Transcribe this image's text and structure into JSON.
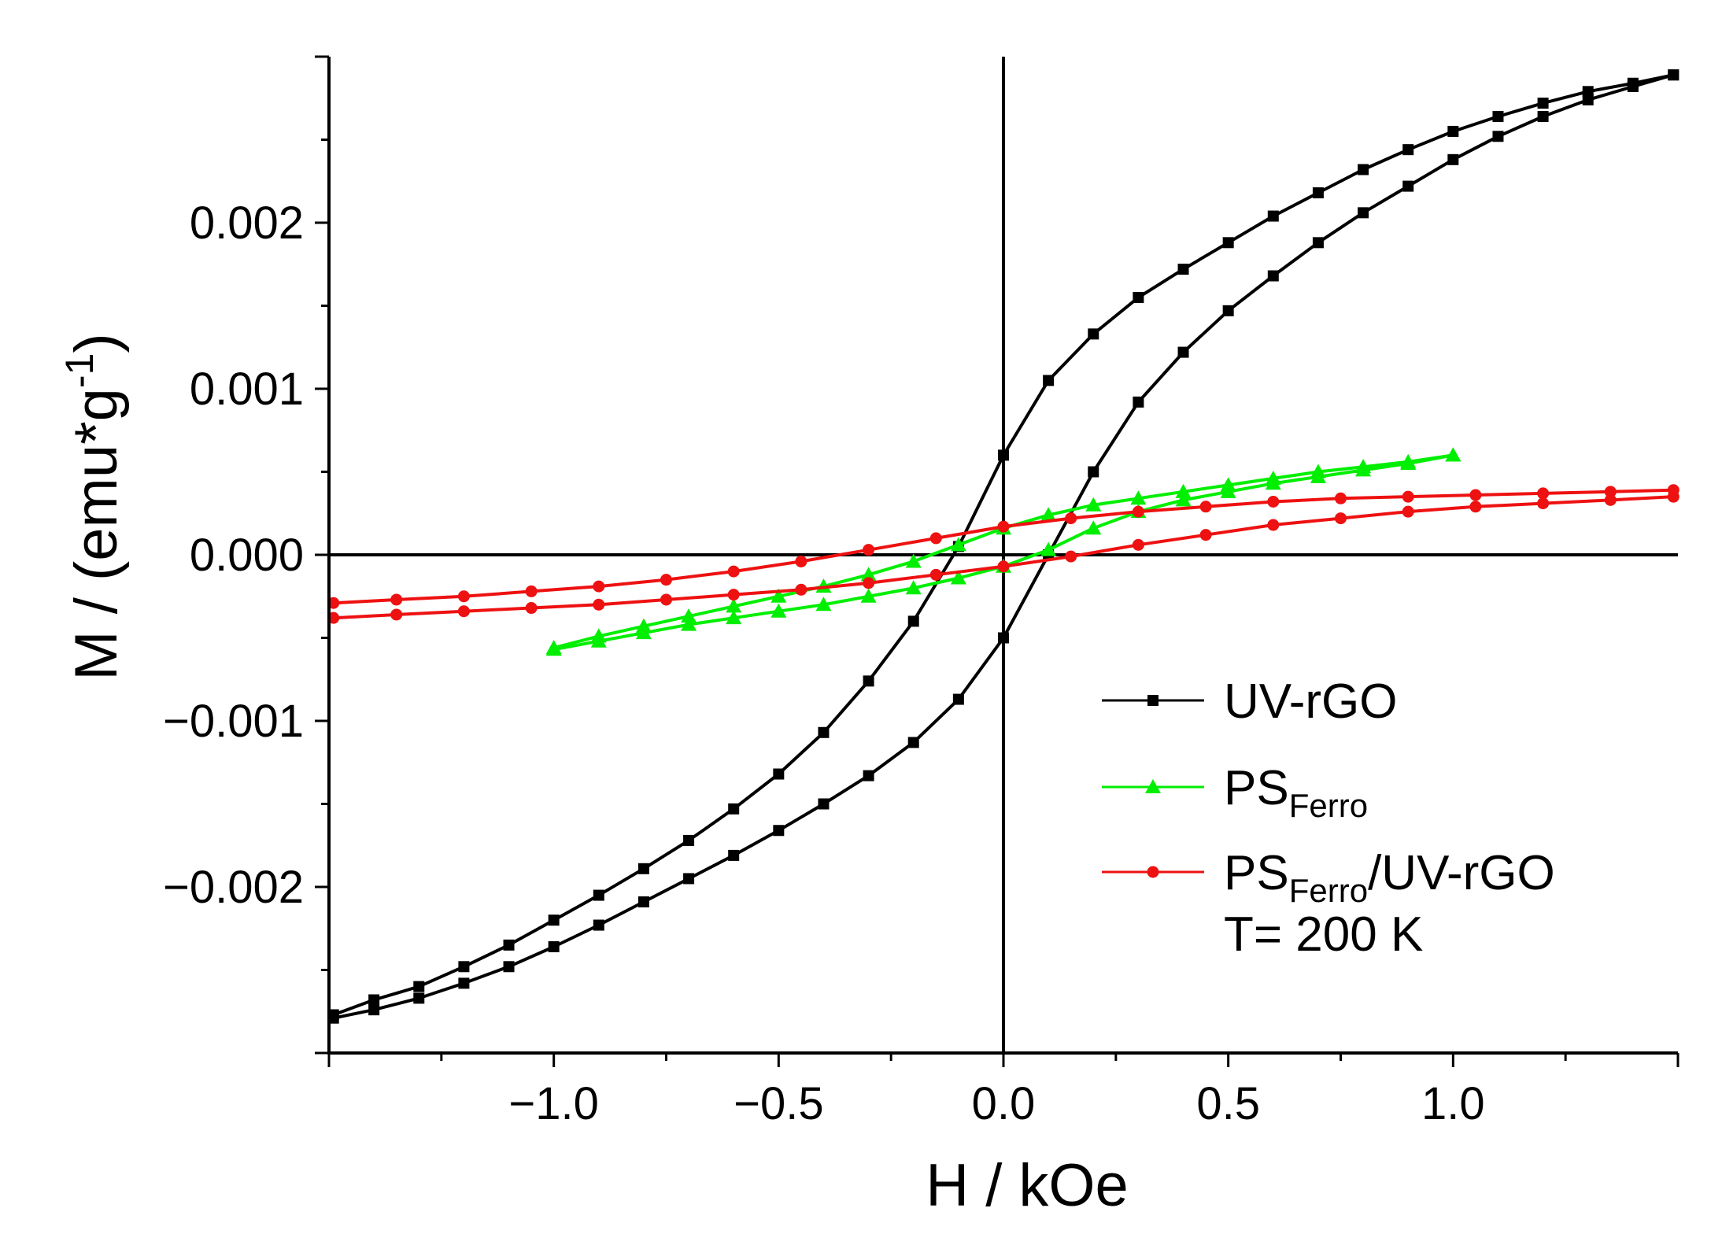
{
  "chart_data": {
    "type": "scatter",
    "title": "",
    "xlabel": "H / kOe",
    "ylabel": {
      "main": "M / (emu*g",
      "sup": "-1",
      "close": ")"
    },
    "xlim": [
      -1.5,
      1.5
    ],
    "ylim": [
      -0.003,
      0.003
    ],
    "x_ticks": [
      -1.0,
      -0.5,
      0.0,
      0.5,
      1.0
    ],
    "x_tick_labels": [
      "−1.0",
      "−0.5",
      "0.0",
      "0.5",
      "1.0"
    ],
    "y_ticks": [
      -0.002,
      -0.001,
      0.0,
      0.001,
      0.002
    ],
    "y_tick_labels": [
      "−0.002",
      "−0.001",
      "0.000",
      "0.001",
      "0.002"
    ],
    "zero_lines": true,
    "grid": false,
    "legend_position": "bottom-right",
    "annotation": "T= 200 K",
    "series": [
      {
        "name": "UV-rGO",
        "legend": {
          "main": "UV-rGO",
          "sub": "",
          "tail": ""
        },
        "color": "#000000",
        "marker": "square",
        "branches": [
          {
            "x": [
              -1.49,
              -1.4,
              -1.3,
              -1.2,
              -1.1,
              -1.0,
              -0.9,
              -0.8,
              -0.7,
              -0.6,
              -0.5,
              -0.4,
              -0.3,
              -0.2,
              -0.1,
              0.0,
              0.1,
              0.2,
              0.3,
              0.4,
              0.5,
              0.6,
              0.7,
              0.8,
              0.9,
              1.0,
              1.1,
              1.2,
              1.3,
              1.4,
              1.49
            ],
            "y": [
              -0.00277,
              -0.00268,
              -0.0026,
              -0.00248,
              -0.00235,
              -0.0022,
              -0.00205,
              -0.00189,
              -0.00172,
              -0.00153,
              -0.00132,
              -0.00107,
              -0.00076,
              -0.0004,
              5e-05,
              0.0006,
              0.00105,
              0.00133,
              0.00155,
              0.00172,
              0.00188,
              0.00204,
              0.00218,
              0.00232,
              0.00244,
              0.00255,
              0.00264,
              0.00272,
              0.00279,
              0.00284,
              0.00289
            ]
          },
          {
            "x": [
              1.49,
              1.4,
              1.3,
              1.2,
              1.1,
              1.0,
              0.9,
              0.8,
              0.7,
              0.6,
              0.5,
              0.4,
              0.3,
              0.2,
              0.1,
              0.0,
              -0.1,
              -0.2,
              -0.3,
              -0.4,
              -0.5,
              -0.6,
              -0.7,
              -0.8,
              -0.9,
              -1.0,
              -1.1,
              -1.2,
              -1.3,
              -1.4,
              -1.49
            ],
            "y": [
              0.00289,
              0.00282,
              0.00274,
              0.00264,
              0.00252,
              0.00238,
              0.00222,
              0.00206,
              0.00188,
              0.00168,
              0.00147,
              0.00122,
              0.00092,
              0.0005,
              0.0,
              -0.0005,
              -0.00087,
              -0.00113,
              -0.00133,
              -0.0015,
              -0.00166,
              -0.00181,
              -0.00195,
              -0.00209,
              -0.00223,
              -0.00236,
              -0.00248,
              -0.00258,
              -0.00267,
              -0.00274,
              -0.00279
            ]
          }
        ]
      },
      {
        "name": "PSFerro",
        "legend": {
          "main": "PS",
          "sub": "Ferro",
          "tail": ""
        },
        "color": "#00ee00",
        "marker": "triangle",
        "branches": [
          {
            "x": [
              -1.0,
              -0.9,
              -0.8,
              -0.7,
              -0.6,
              -0.5,
              -0.4,
              -0.3,
              -0.2,
              -0.1,
              0.0,
              0.1,
              0.2,
              0.3,
              0.4,
              0.5,
              0.6,
              0.7,
              0.8,
              0.9,
              1.0
            ],
            "y": [
              -0.00056,
              -0.00049,
              -0.00043,
              -0.00037,
              -0.00031,
              -0.00025,
              -0.00019,
              -0.00012,
              -4e-05,
              6e-05,
              0.00016,
              0.00024,
              0.0003,
              0.00034,
              0.00038,
              0.00042,
              0.00046,
              0.0005,
              0.00053,
              0.00056,
              0.0006
            ]
          },
          {
            "x": [
              1.0,
              0.9,
              0.8,
              0.7,
              0.6,
              0.5,
              0.4,
              0.3,
              0.2,
              0.1,
              0.0,
              -0.1,
              -0.2,
              -0.3,
              -0.4,
              -0.5,
              -0.6,
              -0.7,
              -0.8,
              -0.9,
              -1.0
            ],
            "y": [
              0.0006,
              0.00055,
              0.00051,
              0.00047,
              0.00043,
              0.00038,
              0.00033,
              0.00026,
              0.00016,
              3e-05,
              -7e-05,
              -0.00014,
              -0.0002,
              -0.00025,
              -0.0003,
              -0.00034,
              -0.00038,
              -0.00042,
              -0.00047,
              -0.00052,
              -0.00057
            ]
          }
        ]
      },
      {
        "name": "PSFerro/UV-rGO",
        "legend": {
          "main": "PS",
          "sub": "Ferro",
          "tail": "/UV-rGO"
        },
        "color": "#ee1111",
        "marker": "circle",
        "branches": [
          {
            "x": [
              -1.49,
              -1.35,
              -1.2,
              -1.05,
              -0.9,
              -0.75,
              -0.6,
              -0.45,
              -0.3,
              -0.15,
              0.0,
              0.15,
              0.3,
              0.45,
              0.6,
              0.75,
              0.9,
              1.05,
              1.2,
              1.35,
              1.49
            ],
            "y": [
              -0.00038,
              -0.00036,
              -0.00034,
              -0.00032,
              -0.0003,
              -0.00027,
              -0.00024,
              -0.00021,
              -0.00017,
              -0.00012,
              -7e-05,
              -1e-05,
              6e-05,
              0.00012,
              0.00018,
              0.00022,
              0.00026,
              0.00029,
              0.00031,
              0.00033,
              0.00035
            ]
          },
          {
            "x": [
              1.49,
              1.35,
              1.2,
              1.05,
              0.9,
              0.75,
              0.6,
              0.45,
              0.3,
              0.15,
              0.0,
              -0.15,
              -0.3,
              -0.45,
              -0.6,
              -0.75,
              -0.9,
              -1.05,
              -1.2,
              -1.35,
              -1.49
            ],
            "y": [
              0.00039,
              0.00038,
              0.00037,
              0.00036,
              0.00035,
              0.00034,
              0.00032,
              0.00029,
              0.00026,
              0.00022,
              0.00017,
              0.0001,
              3e-05,
              -4e-05,
              -0.0001,
              -0.00015,
              -0.00019,
              -0.00022,
              -0.00025,
              -0.00027,
              -0.00029
            ]
          }
        ]
      }
    ]
  }
}
